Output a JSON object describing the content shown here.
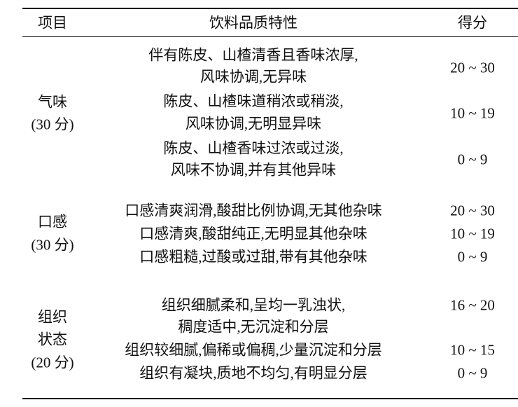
{
  "table": {
    "headers": [
      "项目",
      "饮料品质特性",
      "得分"
    ],
    "groups": [
      {
        "item": [
          "气味",
          "(30 分)"
        ],
        "rows": [
          {
            "desc": [
              "伴有陈皮、山楂清香且香味浓厚,",
              "风味协调,无异味"
            ],
            "score": "20 ~ 30"
          },
          {
            "desc": [
              "陈皮、山楂味道稍浓或稍淡,",
              "风味协调,无明显异味"
            ],
            "score": "10 ~ 19"
          },
          {
            "desc": [
              "陈皮、山楂香味过浓或过淡,",
              "风味不协调,并有其他异味"
            ],
            "score": "0 ~ 9"
          }
        ]
      },
      {
        "item": [
          "口感",
          "(30 分)"
        ],
        "rows": [
          {
            "desc": [
              "口感清爽润滑,酸甜比例协调,无其他杂味"
            ],
            "score": "20 ~ 30"
          },
          {
            "desc": [
              "口感清爽,酸甜纯正,无明显其他杂味"
            ],
            "score": "10 ~ 19"
          },
          {
            "desc": [
              "口感粗糙,过酸或过甜,带有其他杂味"
            ],
            "score": "0 ~ 9"
          }
        ]
      },
      {
        "item": [
          "组织",
          "状态",
          "(20 分)"
        ],
        "rows": [
          {
            "desc": [
              "组织细腻柔和,呈均一乳浊状,",
              "稠度适中,无沉淀和分层"
            ],
            "score": "16 ~ 20"
          },
          {
            "desc": [
              "组织较细腻,偏稀或偏稠,少量沉淀和分层"
            ],
            "score": "10 ~ 15"
          },
          {
            "desc": [
              "组织有凝块,质地不均匀,有明显分层"
            ],
            "score": "0 ~ 9"
          }
        ]
      }
    ]
  }
}
